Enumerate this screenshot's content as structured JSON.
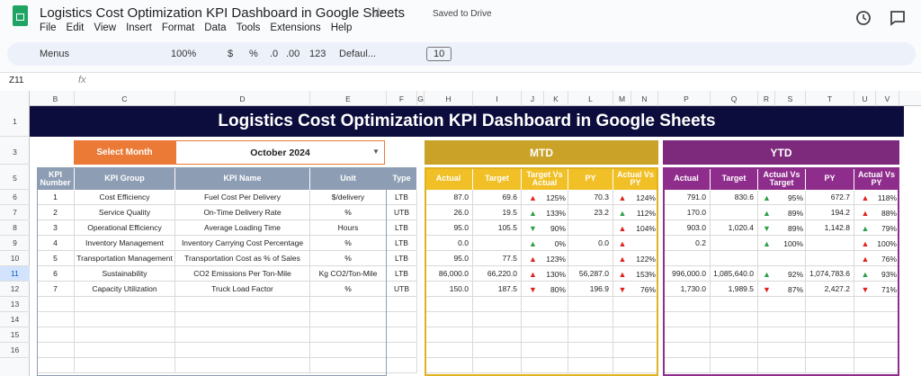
{
  "app": {
    "title": "Logistics Cost Optimization KPI Dashboard in Google Sheets",
    "status": "Saved to Drive",
    "menu": [
      "File",
      "Edit",
      "View",
      "Insert",
      "Format",
      "Data",
      "Tools",
      "Extensions",
      "Help"
    ],
    "toolbar": [
      "Menus",
      "100%",
      "$",
      "%",
      ".0",
      ".00",
      "123",
      "Defaul...",
      "10"
    ],
    "name_box": "Z11",
    "fx": "fx"
  },
  "columns": [
    "B",
    "C",
    "D",
    "E",
    "F",
    "G",
    "H",
    "I",
    "J",
    "K",
    "L",
    "M",
    "N",
    "P",
    "Q",
    "R",
    "S",
    "T",
    "U",
    "V"
  ],
  "rows": [
    "1",
    "3",
    "5",
    "6",
    "7",
    "8",
    "9",
    "10",
    "11",
    "12",
    "13",
    "14",
    "15",
    "16"
  ],
  "sheet": {
    "title": "Logistics Cost Optimization KPI Dashboard in Google Sheets",
    "select_label": "Select Month",
    "select_value": "October 2024",
    "mtd": "MTD",
    "ytd": "YTD",
    "headers": [
      "KPI Number",
      "KPI Group",
      "KPI Name",
      "Unit",
      "Type",
      "Actual",
      "Target",
      "Target Vs Actual",
      "PY",
      "Actual Vs PY",
      "Actual",
      "Target",
      "Actual Vs Target",
      "PY",
      "Actual Vs PY"
    ],
    "kpis": [
      [
        "1",
        "Cost Efficiency",
        "Fuel Cost Per Delivery",
        "$/delivery",
        "LTB",
        "87.0",
        "69.6",
        {
          "arrow": "▲",
          "color": "#e0211d",
          "pct": "125%"
        },
        "70.3",
        {
          "arrow": "▲",
          "color": "#e0211d",
          "pct": "124%"
        },
        "791.0",
        "830.6",
        {
          "arrow": "▲",
          "color": "#2f9e44",
          "pct": "95%"
        },
        "672.7",
        {
          "arrow": "▲",
          "color": "#e0211d",
          "pct": "118%"
        }
      ],
      [
        "2",
        "Service Quality",
        "On-Time Delivery Rate",
        "%",
        "UTB",
        "26.0",
        "19.5",
        {
          "arrow": "▲",
          "color": "#2f9e44",
          "pct": "133%"
        },
        "23.2",
        {
          "arrow": "▲",
          "color": "#2f9e44",
          "pct": "112%"
        },
        "170.0",
        null,
        {
          "arrow": "▲",
          "color": "#2f9e44",
          "pct": "89%"
        },
        "194.2",
        {
          "arrow": "▲",
          "color": "#e0211d",
          "pct": "88%"
        }
      ],
      [
        "3",
        "Operational Efficiency",
        "Average Loading Time",
        "Hours",
        "LTB",
        "95.0",
        "105.5",
        {
          "arrow": "▼",
          "color": "#2f9e44",
          "pct": "90%"
        },
        null,
        {
          "arrow": "▲",
          "color": "#e0211d",
          "pct": "104%"
        },
        "903.0",
        "1,020.4",
        {
          "arrow": "▼",
          "color": "#2f9e44",
          "pct": "89%"
        },
        "1,142.8",
        {
          "arrow": "▲",
          "color": "#2f9e44",
          "pct": "79%"
        }
      ],
      [
        "4",
        "Inventory Management",
        "Inventory Carrying Cost Percentage",
        "%",
        "LTB",
        "0.0",
        null,
        {
          "arrow": "▲",
          "color": "#2f9e44",
          "pct": "0%"
        },
        "0.0",
        {
          "arrow": "▲",
          "color": "#e0211d"
        },
        "0.2",
        null,
        {
          "arrow": "▲",
          "color": "#2f9e44",
          "pct": "100%"
        },
        null,
        {
          "arrow": "▲",
          "color": "#e0211d",
          "pct": "100%"
        }
      ],
      [
        "5",
        "Transportation Management",
        "Transportation Cost as % of Sales",
        "%",
        "LTB",
        "95.0",
        "77.5",
        {
          "arrow": "▲",
          "color": "#e0211d",
          "pct": "123%"
        },
        null,
        {
          "arrow": "▲",
          "color": "#e0211d",
          "pct": "122%"
        },
        null,
        null,
        null,
        null,
        {
          "arrow": "▲",
          "color": "#e0211d",
          "pct": "76%"
        }
      ],
      [
        "6",
        "Sustainability",
        "CO2 Emissions Per Ton-Mile",
        "Kg CO2/Ton-Mile",
        "LTB",
        "86,000.0",
        "66,220.0",
        {
          "arrow": "▲",
          "color": "#e0211d",
          "pct": "130%"
        },
        "56,287.0",
        {
          "arrow": "▲",
          "color": "#e0211d",
          "pct": "153%"
        },
        "996,000.0",
        "1,085,640.0",
        {
          "arrow": "▲",
          "color": "#2f9e44",
          "pct": "92%"
        },
        "1,074,783.6",
        {
          "arrow": "▲",
          "color": "#2f9e44",
          "pct": "93%"
        }
      ],
      [
        "7",
        "Capacity Utilization",
        "Truck Load Factor",
        "%",
        "UTB",
        "150.0",
        "187.5",
        {
          "arrow": "▼",
          "color": "#e0211d",
          "pct": "80%"
        },
        "196.9",
        {
          "arrow": "▼",
          "color": "#e0211d",
          "pct": "76%"
        },
        "1,730.0",
        "1,989.5",
        {
          "arrow": "▼",
          "color": "#e0211d",
          "pct": "87%"
        },
        "2,427.2",
        {
          "arrow": "▼",
          "color": "#e0211d",
          "pct": "71%"
        }
      ]
    ]
  }
}
